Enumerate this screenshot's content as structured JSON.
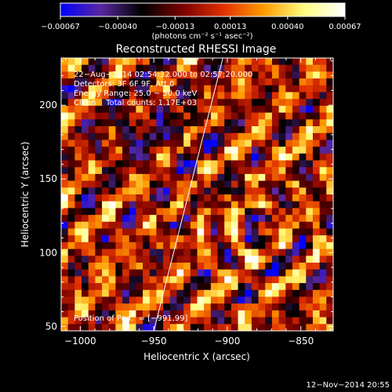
{
  "chart_data": {
    "type": "heatmap",
    "title": "Reconstructed RHESSI Image",
    "xlabel": "Heliocentric X (arcsec)",
    "ylabel": "Heliocentric Y (arcsec)",
    "xlim": [
      -1013,
      -828
    ],
    "ylim": [
      47,
      232
    ],
    "x_ticks": [
      -1000,
      -950,
      -900,
      -850
    ],
    "x_tick_labels": [
      "−1000",
      "−950",
      "−900",
      "−850"
    ],
    "y_ticks": [
      50,
      100,
      150,
      200
    ],
    "y_tick_labels": [
      "50",
      "100",
      "150",
      "200"
    ],
    "colorbar": {
      "min": -0.00067,
      "max": 0.00067,
      "ticks": [
        -0.00067,
        -0.0004,
        -0.00013,
        0.00013,
        0.0004,
        0.00067
      ],
      "tick_labels": [
        "−0.00067",
        "−0.00040",
        "−0.00013",
        "0.00013",
        "0.00040",
        "0.00067"
      ],
      "units_label": "(photons cm⁻² s⁻¹ asec⁻²)",
      "colormap_stops": [
        "#0000ff",
        "#5a28a0",
        "#000000",
        "#7a0000",
        "#e03000",
        "#ff9a00",
        "#ffff80",
        "#ffffff"
      ]
    },
    "limb_line": {
      "points": [
        [
          -950,
          47
        ],
        [
          -903,
          232
        ]
      ],
      "color": "#ffffff"
    },
    "info_lines": [
      "22−Aug−2014 02:54:32.000 to 02:57:20.000",
      "Detectors: 3F 6F 9F, Att 0",
      "Energy Range: 25.0 − 50.0 keV",
      "Clean    Total counts: 1.17E+03"
    ],
    "pedestal_text": "Position of Ped.  = [−991,99]",
    "grid_points": 40
  },
  "footer": {
    "timestamp": "12−Nov−2014 20:55"
  }
}
